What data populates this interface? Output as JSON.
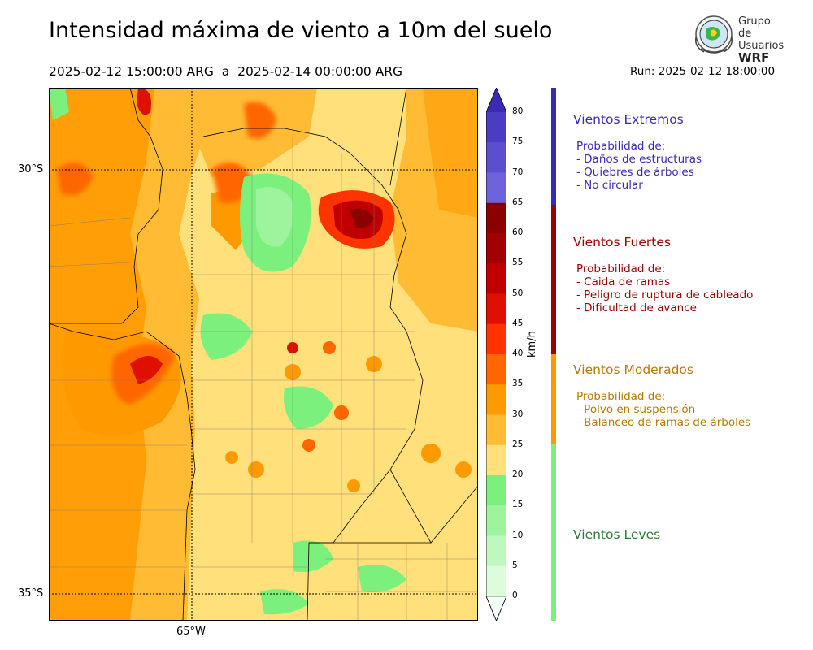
{
  "header": {
    "title": "Intensidad máxima de viento a 10m del suelo",
    "period": "2025-02-12 15:00:00 ARG  a  2025-02-14 00:00:00 ARG",
    "run": "Run: 2025-02-12 18:00:00"
  },
  "logo": {
    "line1": "Grupo de",
    "line2": "Usuarios",
    "line3": "WRF"
  },
  "map": {
    "latitude_labels": [
      "30°S",
      "35°S"
    ],
    "longitude_labels": [
      "65°W"
    ]
  },
  "colorbar": {
    "unit": "km/h",
    "ticks": [
      "80",
      "75",
      "70",
      "65",
      "60",
      "55",
      "50",
      "45",
      "40",
      "35",
      "30",
      "25",
      "20",
      "15",
      "10",
      "5",
      "0"
    ],
    "colors": [
      "#3a2bb5",
      "#4a3dc4",
      "#5b4fd0",
      "#6e63dc",
      "#8b0000",
      "#a30000",
      "#c00000",
      "#e01000",
      "#ff3300",
      "#ff6600",
      "#ff9900",
      "#ffbb33",
      "#ffe07a",
      "#7cf07c",
      "#9df49d",
      "#bef8be",
      "#dcfcdc",
      "#f3fff3"
    ]
  },
  "categories": [
    {
      "name": "Vientos Extremos",
      "color": "#3a2bb5",
      "desc": [
        "Probabilidad de:",
        "- Daños de estructuras",
        "- Quiebres de árboles",
        "- No circular"
      ]
    },
    {
      "name": "Vientos Fuertes",
      "color": "#a00000",
      "desc": [
        "Probabilidad de:",
        "- Caida de ramas",
        "- Peligro de ruptura de cableado",
        "- Dificultad de avance"
      ]
    },
    {
      "name": "Vientos Moderados",
      "color": "#b87a00",
      "desc": [
        "Probabilidad de:",
        "- Polvo en suspensión",
        "- Balanceo de ramas de árboles"
      ]
    },
    {
      "name": "Vientos Leves",
      "color": "#2e7d32",
      "desc": []
    }
  ]
}
